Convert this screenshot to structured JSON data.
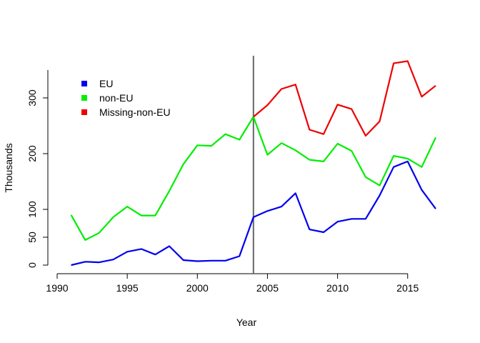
{
  "chart_data": {
    "type": "line",
    "xlabel": "Year",
    "ylabel": "Thousands",
    "xlim": [
      1990,
      2017
    ],
    "ylim": [
      0,
      350
    ],
    "x_ticks": [
      1990,
      1995,
      2000,
      2005,
      2010,
      2015
    ],
    "y_ticks": [
      0,
      50,
      100,
      200,
      300
    ],
    "grid": false,
    "legend_position": "top-left",
    "vertical_line_x": 2004,
    "series": [
      {
        "name": "EU",
        "color": "#0000ee",
        "x": [
          1991,
          1992,
          1993,
          1994,
          1995,
          1996,
          1997,
          1998,
          1999,
          2000,
          2001,
          2002,
          2003,
          2004,
          2005,
          2006,
          2007,
          2008,
          2009,
          2010,
          2011,
          2012,
          2013,
          2014,
          2015,
          2016,
          2017
        ],
        "values": [
          0,
          6,
          5,
          10,
          24,
          29,
          19,
          34,
          9,
          7,
          8,
          8,
          16,
          86,
          97,
          105,
          129,
          64,
          59,
          78,
          83,
          83,
          125,
          176,
          186,
          135,
          101
        ]
      },
      {
        "name": "non-EU",
        "color": "#00ee00",
        "x": [
          1991,
          1992,
          1993,
          1994,
          1995,
          1996,
          1997,
          1998,
          1999,
          2000,
          2001,
          2002,
          2003,
          2004,
          2005,
          2006,
          2007,
          2008,
          2009,
          2010,
          2011,
          2012,
          2013,
          2014,
          2015,
          2016,
          2017
        ],
        "values": [
          90,
          45,
          58,
          86,
          105,
          89,
          89,
          133,
          181,
          215,
          214,
          235,
          225,
          266,
          198,
          219,
          206,
          189,
          186,
          218,
          205,
          158,
          143,
          196,
          191,
          176,
          229
        ]
      },
      {
        "name": "Missing-non-EU",
        "color": "#ee0000",
        "x": [
          2004,
          2005,
          2006,
          2007,
          2008,
          2009,
          2010,
          2011,
          2012,
          2013,
          2014,
          2015,
          2016,
          2017
        ],
        "values": [
          266,
          287,
          316,
          324,
          243,
          235,
          288,
          280,
          232,
          258,
          362,
          366,
          302,
          322
        ]
      }
    ]
  }
}
